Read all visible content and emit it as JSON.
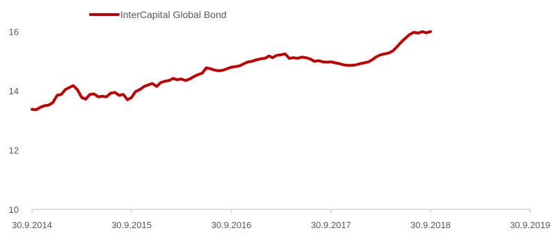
{
  "chart_data": {
    "type": "line",
    "title": "",
    "xlabel": "",
    "ylabel": "",
    "ylim": [
      10,
      16.6
    ],
    "yticks": [
      10,
      12,
      14,
      16
    ],
    "xticks": [
      "30.9.2014",
      "30.9.2015",
      "30.9.2016",
      "30.9.2017",
      "30.9.2018",
      "30.9.2019"
    ],
    "grid": false,
    "legend_position": "top-left",
    "series": [
      {
        "name": "InterCapital Global Bond",
        "color": "#c00000",
        "points": [
          [
            "30.9.2014",
            13.38
          ],
          [
            "15.10.2014",
            13.36
          ],
          [
            "31.10.2014",
            13.45
          ],
          [
            "15.11.2014",
            13.5
          ],
          [
            "30.11.2014",
            13.52
          ],
          [
            "15.12.2014",
            13.6
          ],
          [
            "31.12.2014",
            13.85
          ],
          [
            "15.1.2015",
            13.88
          ],
          [
            "31.1.2015",
            14.05
          ],
          [
            "15.2.2015",
            14.12
          ],
          [
            "28.2.2015",
            14.18
          ],
          [
            "15.3.2015",
            14.05
          ],
          [
            "31.3.2015",
            13.78
          ],
          [
            "15.4.2015",
            13.72
          ],
          [
            "30.4.2015",
            13.88
          ],
          [
            "15.5.2015",
            13.9
          ],
          [
            "31.5.2015",
            13.8
          ],
          [
            "15.6.2015",
            13.82
          ],
          [
            "30.6.2015",
            13.8
          ],
          [
            "15.7.2015",
            13.92
          ],
          [
            "31.7.2015",
            13.95
          ],
          [
            "15.8.2015",
            13.85
          ],
          [
            "31.8.2015",
            13.88
          ],
          [
            "15.9.2015",
            13.7
          ],
          [
            "30.9.2015",
            13.78
          ],
          [
            "15.10.2015",
            13.98
          ],
          [
            "31.10.2015",
            14.05
          ],
          [
            "15.11.2015",
            14.15
          ],
          [
            "30.11.2015",
            14.2
          ],
          [
            "15.12.2015",
            14.25
          ],
          [
            "31.12.2015",
            14.15
          ],
          [
            "15.1.2016",
            14.28
          ],
          [
            "31.1.2016",
            14.33
          ],
          [
            "15.2.2016",
            14.35
          ],
          [
            "29.2.2016",
            14.42
          ],
          [
            "15.3.2016",
            14.38
          ],
          [
            "31.3.2016",
            14.4
          ],
          [
            "15.4.2016",
            14.35
          ],
          [
            "30.4.2016",
            14.4
          ],
          [
            "15.5.2016",
            14.48
          ],
          [
            "31.5.2016",
            14.55
          ],
          [
            "15.6.2016",
            14.6
          ],
          [
            "30.6.2016",
            14.78
          ],
          [
            "15.7.2016",
            14.75
          ],
          [
            "31.7.2016",
            14.7
          ],
          [
            "15.8.2016",
            14.68
          ],
          [
            "31.8.2016",
            14.7
          ],
          [
            "15.9.2016",
            14.75
          ],
          [
            "30.9.2016",
            14.8
          ],
          [
            "15.10.2016",
            14.82
          ],
          [
            "31.10.2016",
            14.85
          ],
          [
            "15.11.2016",
            14.92
          ],
          [
            "30.11.2016",
            14.98
          ],
          [
            "15.12.2016",
            15.0
          ],
          [
            "31.12.2016",
            15.05
          ],
          [
            "15.1.2017",
            15.08
          ],
          [
            "31.1.2017",
            15.1
          ],
          [
            "15.2.2017",
            15.18
          ],
          [
            "28.2.2017",
            15.12
          ],
          [
            "15.3.2017",
            15.2
          ],
          [
            "31.3.2017",
            15.22
          ],
          [
            "15.4.2017",
            15.25
          ],
          [
            "30.4.2017",
            15.1
          ],
          [
            "15.5.2017",
            15.12
          ],
          [
            "31.5.2017",
            15.1
          ],
          [
            "15.6.2017",
            15.14
          ],
          [
            "30.6.2017",
            15.12
          ],
          [
            "15.7.2017",
            15.08
          ],
          [
            "31.7.2017",
            15.0
          ],
          [
            "15.8.2017",
            15.02
          ],
          [
            "31.8.2017",
            14.98
          ],
          [
            "15.9.2017",
            14.97
          ],
          [
            "30.9.2017",
            14.98
          ],
          [
            "15.10.2017",
            14.95
          ],
          [
            "31.10.2017",
            14.92
          ],
          [
            "15.11.2017",
            14.88
          ],
          [
            "30.11.2017",
            14.86
          ],
          [
            "15.12.2017",
            14.86
          ],
          [
            "31.12.2017",
            14.88
          ],
          [
            "15.1.2018",
            14.92
          ],
          [
            "31.1.2018",
            14.95
          ],
          [
            "15.2.2018",
            14.98
          ],
          [
            "28.2.2018",
            15.05
          ],
          [
            "15.3.2018",
            15.15
          ],
          [
            "31.3.2018",
            15.22
          ],
          [
            "15.4.2018",
            15.25
          ],
          [
            "30.4.2018",
            15.28
          ],
          [
            "15.5.2018",
            15.35
          ],
          [
            "31.5.2018",
            15.5
          ],
          [
            "15.6.2018",
            15.65
          ],
          [
            "30.6.2018",
            15.78
          ],
          [
            "15.7.2018",
            15.9
          ],
          [
            "31.7.2018",
            15.98
          ],
          [
            "15.8.2018",
            15.95
          ],
          [
            "31.8.2018",
            16.0
          ],
          [
            "15.9.2018",
            15.96
          ],
          [
            "30.9.2018",
            16.0
          ]
        ]
      }
    ]
  }
}
